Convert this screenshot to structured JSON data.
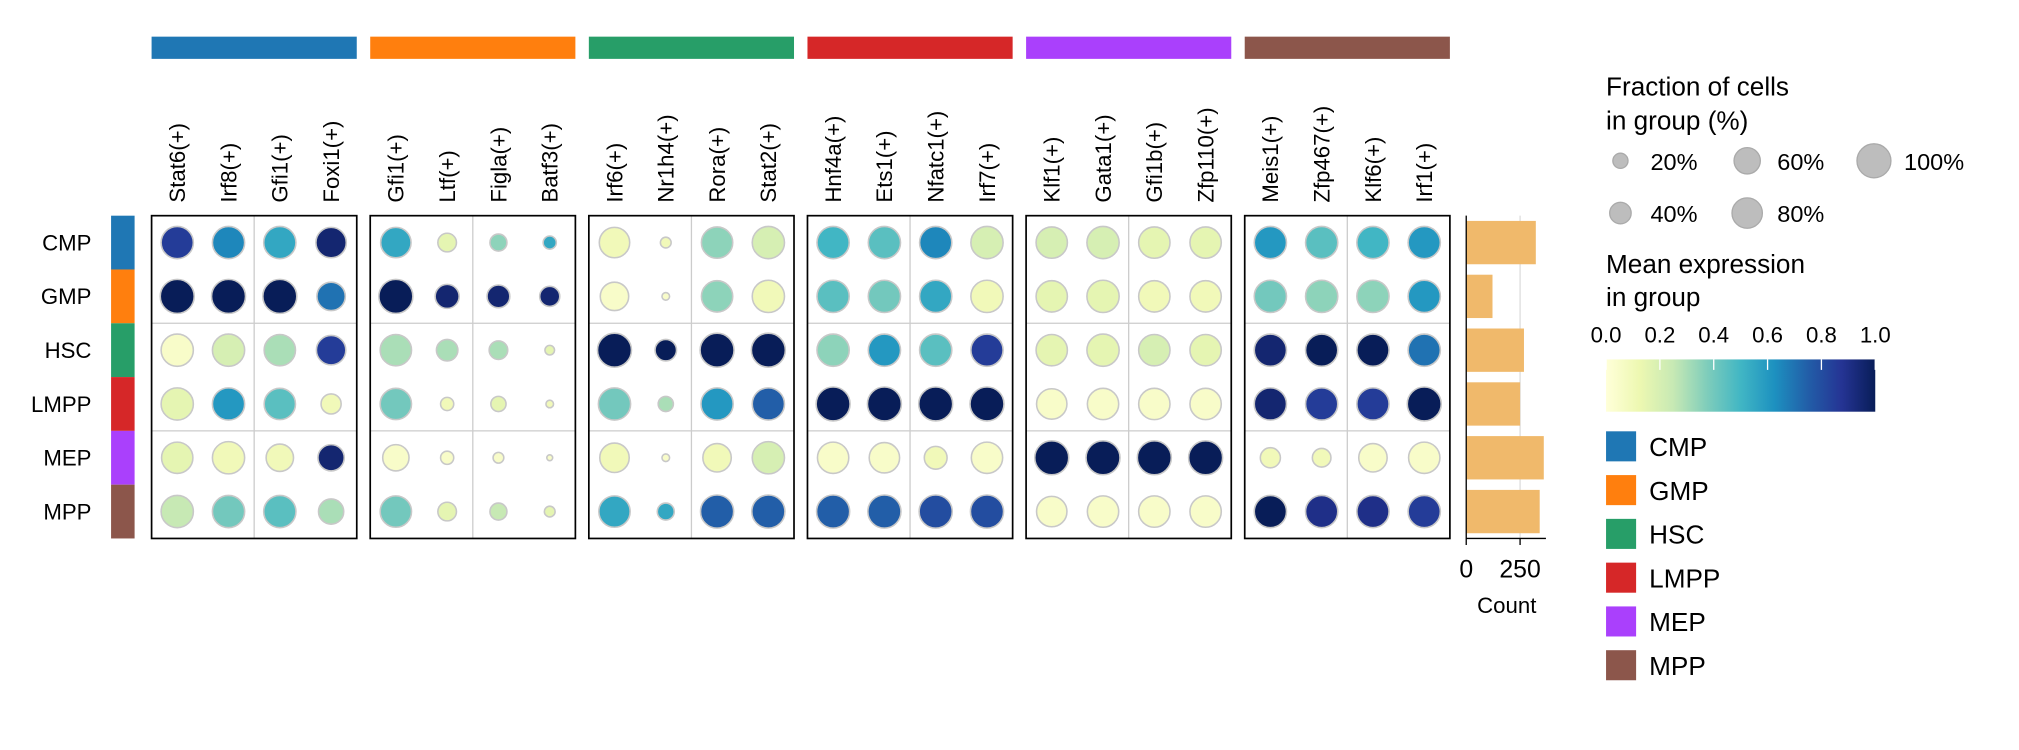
{
  "chart_data": {
    "type": "dotplot",
    "categories": [
      "CMP",
      "GMP",
      "HSC",
      "LMPP",
      "MEP",
      "MPP"
    ],
    "group_colors": [
      "#1f77b4",
      "#ff7f0e",
      "#279e68",
      "#d62728",
      "#aa40fc",
      "#8c564b"
    ],
    "gene_blocks": [
      {
        "color": "#1f77b4",
        "genes": [
          "Stat6(+)",
          "Irf8(+)",
          "Gfi1(+)",
          "Foxi1(+)"
        ]
      },
      {
        "color": "#ff7f0e",
        "genes": [
          "Gfi1(+)",
          "Ltf(+)",
          "Figla(+)",
          "Batf3(+)"
        ]
      },
      {
        "color": "#279e68",
        "genes": [
          "Irf6(+)",
          "Nr1h4(+)",
          "Rora(+)",
          "Stat2(+)"
        ]
      },
      {
        "color": "#d62728",
        "genes": [
          "Hnf4a(+)",
          "Ets1(+)",
          "Nfatc1(+)",
          "Irf7(+)"
        ]
      },
      {
        "color": "#aa40fc",
        "genes": [
          "Klf1(+)",
          "Gata1(+)",
          "Gfi1b(+)",
          "Zfp110(+)"
        ]
      },
      {
        "color": "#8c564b",
        "genes": [
          "Meis1(+)",
          "Zfp467(+)",
          "Klf6(+)",
          "Irf1(+)"
        ]
      }
    ],
    "fraction": [
      [
        90,
        90,
        90,
        80,
        80,
        30,
        25,
        15,
        80,
        10,
        85,
        90,
        90,
        90,
        90,
        90,
        85,
        90,
        85,
        85,
        90,
        90,
        90,
        90
      ],
      [
        100,
        100,
        100,
        70,
        100,
        50,
        45,
        35,
        70,
        5,
        85,
        90,
        90,
        90,
        90,
        90,
        85,
        90,
        85,
        85,
        90,
        90,
        90,
        90
      ],
      [
        90,
        90,
        85,
        75,
        85,
        40,
        30,
        8,
        100,
        40,
        100,
        100,
        90,
        90,
        90,
        90,
        85,
        90,
        85,
        85,
        90,
        90,
        90,
        90
      ],
      [
        90,
        90,
        85,
        35,
        85,
        15,
        20,
        5,
        90,
        20,
        90,
        90,
        100,
        100,
        100,
        100,
        80,
        85,
        85,
        85,
        90,
        90,
        90,
        100
      ],
      [
        85,
        90,
        65,
        60,
        60,
        15,
        10,
        3,
        75,
        5,
        70,
        90,
        85,
        80,
        45,
        85,
        100,
        100,
        100,
        100,
        35,
        30,
        70,
        85
      ],
      [
        90,
        90,
        90,
        55,
        85,
        30,
        25,
        10,
        85,
        25,
        95,
        95,
        95,
        95,
        95,
        95,
        80,
        85,
        85,
        85,
        90,
        90,
        90,
        90
      ]
    ],
    "mean": [
      [
        0.85,
        0.65,
        0.55,
        0.95,
        0.55,
        0.15,
        0.35,
        0.55,
        0.1,
        0.1,
        0.35,
        0.2,
        0.5,
        0.45,
        0.65,
        0.2,
        0.2,
        0.2,
        0.15,
        0.15,
        0.6,
        0.45,
        0.5,
        0.6
      ],
      [
        1,
        1,
        1,
        0.7,
        1,
        0.95,
        0.95,
        0.95,
        0.05,
        0.05,
        0.35,
        0.1,
        0.45,
        0.4,
        0.55,
        0.1,
        0.15,
        0.15,
        0.1,
        0.1,
        0.4,
        0.35,
        0.35,
        0.6
      ],
      [
        0.05,
        0.2,
        0.3,
        0.85,
        0.3,
        0.3,
        0.3,
        0.15,
        1,
        1,
        1,
        1,
        0.35,
        0.6,
        0.45,
        0.85,
        0.15,
        0.15,
        0.2,
        0.15,
        0.95,
        1,
        1,
        0.7
      ],
      [
        0.15,
        0.6,
        0.45,
        0.1,
        0.4,
        0.1,
        0.15,
        0.1,
        0.4,
        0.3,
        0.6,
        0.75,
        1,
        1,
        1,
        1,
        0.05,
        0.05,
        0.05,
        0.05,
        0.95,
        0.85,
        0.85,
        1
      ],
      [
        0.15,
        0.1,
        0.1,
        0.95,
        0.05,
        0.05,
        0.05,
        0.05,
        0.1,
        0.05,
        0.1,
        0.2,
        0.05,
        0.05,
        0.1,
        0.05,
        1,
        1,
        1,
        1,
        0.1,
        0.1,
        0.05,
        0.05
      ],
      [
        0.25,
        0.4,
        0.45,
        0.3,
        0.4,
        0.15,
        0.25,
        0.15,
        0.55,
        0.55,
        0.75,
        0.75,
        0.75,
        0.75,
        0.8,
        0.8,
        0.05,
        0.05,
        0.05,
        0.05,
        1,
        0.9,
        0.9,
        0.85
      ]
    ],
    "colormap": [
      "#ffffd9",
      "#edf8b1",
      "#c7e9b4",
      "#7fcdbb",
      "#41b6c4",
      "#1d91c0",
      "#225ea8",
      "#253494",
      "#081d58"
    ],
    "counts": [
      323,
      122,
      268,
      250,
      360,
      341
    ],
    "count_color": "#f0b96b",
    "count_xlim": [
      0,
      370
    ],
    "count_xticks": [
      0,
      250
    ],
    "count_xlabel": "Count",
    "size_legend": {
      "title": [
        "Fraction of cells",
        "in group (%)"
      ],
      "values": [
        20,
        40,
        60,
        80,
        100
      ],
      "value_labels": [
        "20%",
        "40%",
        "60%",
        "80%",
        "100%"
      ]
    },
    "color_legend": {
      "title": [
        "Mean expression",
        "in group"
      ],
      "lim": [
        0,
        1
      ],
      "ticks": [
        {
          "value": 0,
          "label": "0.0"
        },
        {
          "value": 0.2,
          "label": "0.2"
        },
        {
          "value": 0.4,
          "label": "0.4"
        },
        {
          "value": 0.6,
          "label": "0.6"
        },
        {
          "value": 0.8,
          "label": "0.8"
        },
        {
          "value": 1,
          "label": "1.0"
        }
      ]
    }
  }
}
